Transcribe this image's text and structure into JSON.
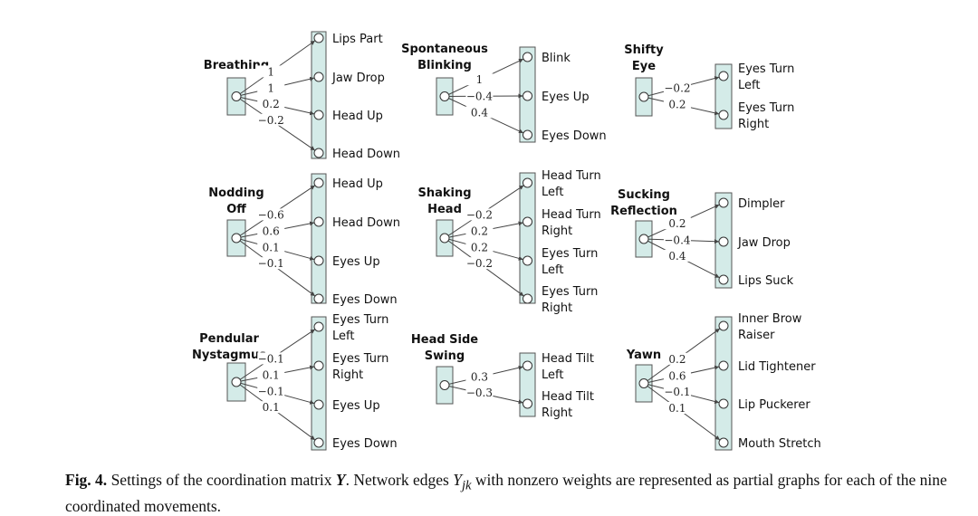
{
  "colors": {
    "box_fill": "#d4ebe8",
    "box_stroke": "#555555",
    "edge": "#444444"
  },
  "panels": [
    {
      "title": [
        "Breathing"
      ],
      "targets": [
        {
          "label": [
            "Lips Part"
          ],
          "weight": "1"
        },
        {
          "label": [
            "Jaw Drop"
          ],
          "weight": "1"
        },
        {
          "label": [
            "Head Up"
          ],
          "weight": "0.2"
        },
        {
          "label": [
            "Head Down"
          ],
          "weight": "−0.2"
        }
      ]
    },
    {
      "title": [
        "Spontaneous",
        "Blinking"
      ],
      "targets": [
        {
          "label": [
            "Blink"
          ],
          "weight": "1"
        },
        {
          "label": [
            "Eyes Up"
          ],
          "weight": "−0.4"
        },
        {
          "label": [
            "Eyes Down"
          ],
          "weight": "0.4"
        }
      ]
    },
    {
      "title": [
        "Shifty",
        "Eye"
      ],
      "targets": [
        {
          "label": [
            "Eyes Turn",
            "Left"
          ],
          "weight": "−0.2"
        },
        {
          "label": [
            "Eyes Turn",
            "Right"
          ],
          "weight": "0.2"
        }
      ]
    },
    {
      "title": [
        "Nodding",
        "Off"
      ],
      "targets": [
        {
          "label": [
            "Head Up"
          ],
          "weight": "−0.6"
        },
        {
          "label": [
            "Head Down"
          ],
          "weight": "0.6"
        },
        {
          "label": [
            "Eyes Up"
          ],
          "weight": "0.1"
        },
        {
          "label": [
            "Eyes Down"
          ],
          "weight": "−0.1"
        }
      ]
    },
    {
      "title": [
        "Shaking",
        "Head"
      ],
      "targets": [
        {
          "label": [
            "Head Turn",
            "Left"
          ],
          "weight": "−0.2"
        },
        {
          "label": [
            "Head Turn",
            "Right"
          ],
          "weight": "0.2"
        },
        {
          "label": [
            "Eyes Turn",
            "Left"
          ],
          "weight": "0.2"
        },
        {
          "label": [
            "Eyes Turn",
            "Right"
          ],
          "weight": "−0.2"
        }
      ]
    },
    {
      "title": [
        "Sucking",
        "Reflection"
      ],
      "targets": [
        {
          "label": [
            "Dimpler"
          ],
          "weight": "0.2"
        },
        {
          "label": [
            "Jaw Drop"
          ],
          "weight": "−0.4"
        },
        {
          "label": [
            "Lips Suck"
          ],
          "weight": "0.4"
        }
      ]
    },
    {
      "title": [
        "Pendular",
        "Nystagmus"
      ],
      "targets": [
        {
          "label": [
            "Eyes Turn",
            "Left"
          ],
          "weight": "−0.1"
        },
        {
          "label": [
            "Eyes Turn",
            "Right"
          ],
          "weight": "0.1"
        },
        {
          "label": [
            "Eyes Up"
          ],
          "weight": "−0.1"
        },
        {
          "label": [
            "Eyes Down"
          ],
          "weight": "0.1"
        }
      ]
    },
    {
      "title": [
        "Head Side",
        "Swing"
      ],
      "targets": [
        {
          "label": [
            "Head Tilt",
            "Left"
          ],
          "weight": "0.3"
        },
        {
          "label": [
            "Head Tilt",
            "Right"
          ],
          "weight": "−0.3"
        }
      ]
    },
    {
      "title": [
        "Yawn"
      ],
      "targets": [
        {
          "label": [
            "Inner Brow",
            "Raiser"
          ],
          "weight": "0.2"
        },
        {
          "label": [
            "Lid Tightener"
          ],
          "weight": "0.6"
        },
        {
          "label": [
            "Lip Puckerer"
          ],
          "weight": "−0.1"
        },
        {
          "label": [
            "Mouth Stretch"
          ],
          "weight": "0.1"
        }
      ]
    }
  ],
  "caption": {
    "fig_label": "Fig. 4.",
    "part1": " Settings of the coordination matrix ",
    "matrix": "Y",
    "part2": ". Network edges ",
    "edge_symbol": "Y",
    "edge_subscript": "jk",
    "part3": " with nonzero weights are represented as partial graphs for each of the nine coordinated movements."
  }
}
